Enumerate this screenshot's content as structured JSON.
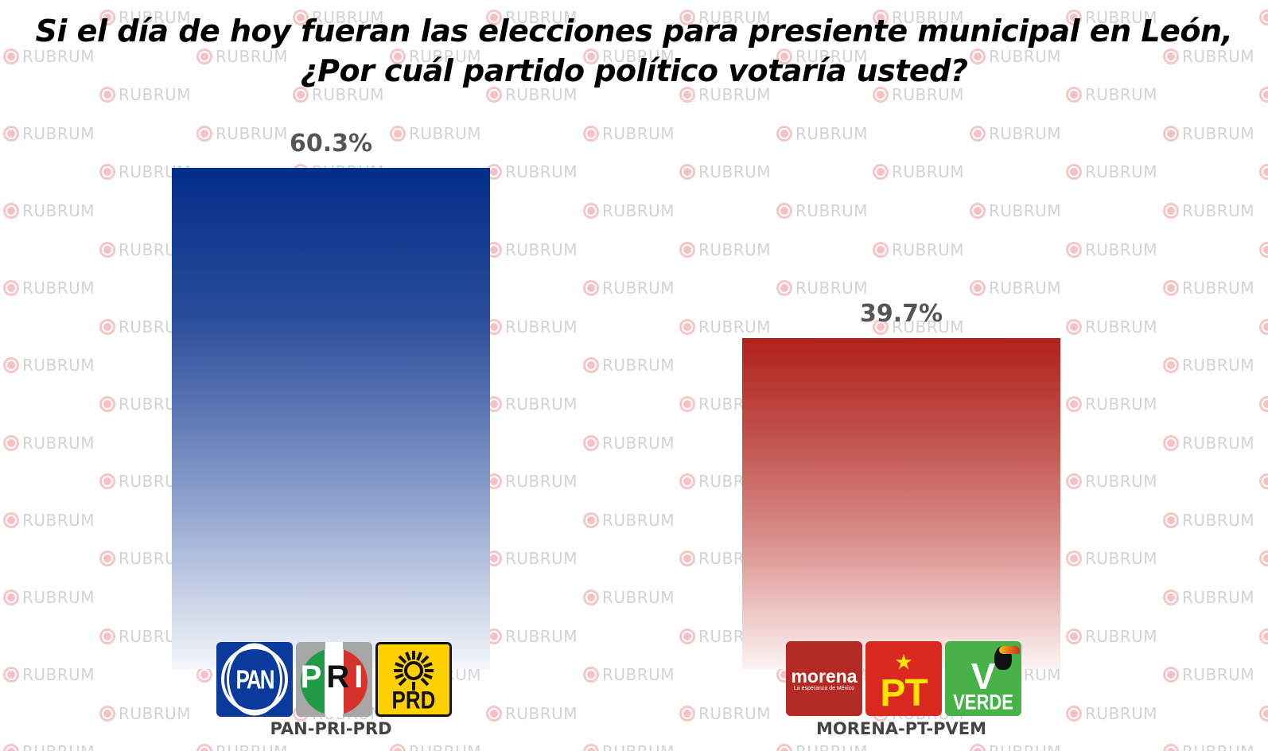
{
  "title": {
    "line1": "Si el día de hoy fueran las elecciones para presiente municipal en León,",
    "line2": "¿Por cuál partido político votaría usted?"
  },
  "watermark": {
    "text": "RUBRUM",
    "icon": "rubrum-target-icon"
  },
  "bars": [
    {
      "category": "PAN-PRI-PRD",
      "value_label": "60.3%",
      "color_top": "#032d8a",
      "logos": [
        {
          "name": "PAN",
          "label": "PAN",
          "color": "#0a3b9c"
        },
        {
          "name": "PRI",
          "label": "PRI",
          "colors": [
            "#1f9a45",
            "#ffffff",
            "#d8322c"
          ]
        },
        {
          "name": "PRD",
          "label": "PRD",
          "color": "#ffd000"
        }
      ]
    },
    {
      "category": "MORENA-PT-PVEM",
      "value_label": "39.7%",
      "color_top": "#b0221c",
      "logos": [
        {
          "name": "morena",
          "label": "morena",
          "tagline": "La esperanza de México",
          "color": "#b42b25"
        },
        {
          "name": "PT",
          "label": "PT",
          "star": "★",
          "color": "#da2a20"
        },
        {
          "name": "VERDE",
          "label": "VERDE",
          "mark": "V",
          "color": "#48b249"
        }
      ]
    }
  ],
  "chart_data": {
    "type": "bar",
    "title": "Si el día de hoy fueran las elecciones para presiente municipal en León, ¿Por cuál partido político votaría usted?",
    "categories": [
      "PAN-PRI-PRD",
      "MORENA-PT-PVEM"
    ],
    "values": [
      60.3,
      39.7
    ],
    "value_labels": [
      "60.3%",
      "39.7%"
    ],
    "colors": [
      "#032d8a",
      "#b0221c"
    ],
    "xlabel": "",
    "ylabel": "",
    "ylim": [
      0,
      60.3
    ],
    "grid": false,
    "legend": "none",
    "watermark": "RUBRUM"
  }
}
